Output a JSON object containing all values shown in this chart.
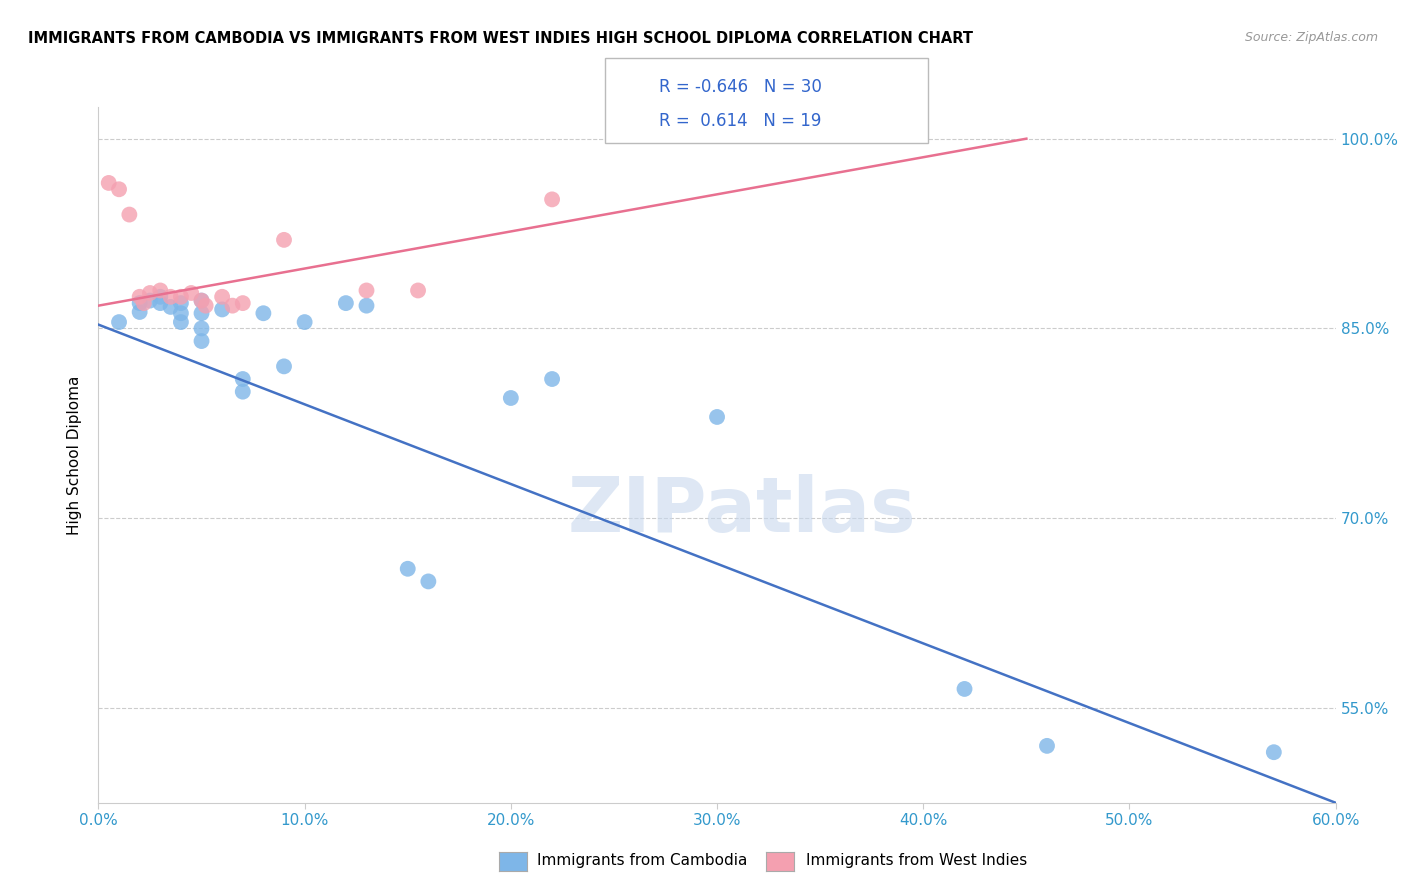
{
  "title": "IMMIGRANTS FROM CAMBODIA VS IMMIGRANTS FROM WEST INDIES HIGH SCHOOL DIPLOMA CORRELATION CHART",
  "source": "Source: ZipAtlas.com",
  "ylabel": "High School Diploma",
  "watermark": "ZIPatlas",
  "legend_blue_label": "Immigrants from Cambodia",
  "legend_pink_label": "Immigrants from West Indies",
  "blue_R": -0.646,
  "blue_N": 30,
  "pink_R": 0.614,
  "pink_N": 19,
  "blue_color": "#7EB6E8",
  "pink_color": "#F4A0B0",
  "blue_line_color": "#4472C4",
  "pink_line_color": "#E87090",
  "xlim": [
    0.0,
    0.6
  ],
  "ylim": [
    0.475,
    1.025
  ],
  "yticks": [
    0.55,
    0.7,
    0.85,
    1.0
  ],
  "xticks": [
    0.0,
    0.1,
    0.2,
    0.3,
    0.4,
    0.5,
    0.6
  ],
  "blue_points_x": [
    0.01,
    0.02,
    0.02,
    0.025,
    0.03,
    0.03,
    0.035,
    0.04,
    0.04,
    0.04,
    0.05,
    0.05,
    0.05,
    0.05,
    0.06,
    0.07,
    0.07,
    0.08,
    0.09,
    0.1,
    0.12,
    0.13,
    0.15,
    0.16,
    0.2,
    0.22,
    0.3,
    0.42,
    0.46,
    0.57
  ],
  "blue_points_y": [
    0.855,
    0.87,
    0.863,
    0.872,
    0.875,
    0.87,
    0.867,
    0.87,
    0.862,
    0.855,
    0.872,
    0.862,
    0.85,
    0.84,
    0.865,
    0.81,
    0.8,
    0.862,
    0.82,
    0.855,
    0.87,
    0.868,
    0.66,
    0.65,
    0.795,
    0.81,
    0.78,
    0.565,
    0.52,
    0.515
  ],
  "pink_points_x": [
    0.005,
    0.01,
    0.015,
    0.02,
    0.022,
    0.025,
    0.03,
    0.035,
    0.04,
    0.045,
    0.05,
    0.052,
    0.06,
    0.065,
    0.07,
    0.09,
    0.13,
    0.155,
    0.22
  ],
  "pink_points_y": [
    0.965,
    0.96,
    0.94,
    0.875,
    0.87,
    0.878,
    0.88,
    0.875,
    0.875,
    0.878,
    0.872,
    0.868,
    0.875,
    0.868,
    0.87,
    0.92,
    0.88,
    0.88,
    0.952
  ],
  "blue_line_x": [
    0.0,
    0.6
  ],
  "blue_line_y": [
    0.853,
    0.475
  ],
  "pink_line_x": [
    0.0,
    0.45
  ],
  "pink_line_y": [
    0.868,
    1.0
  ]
}
